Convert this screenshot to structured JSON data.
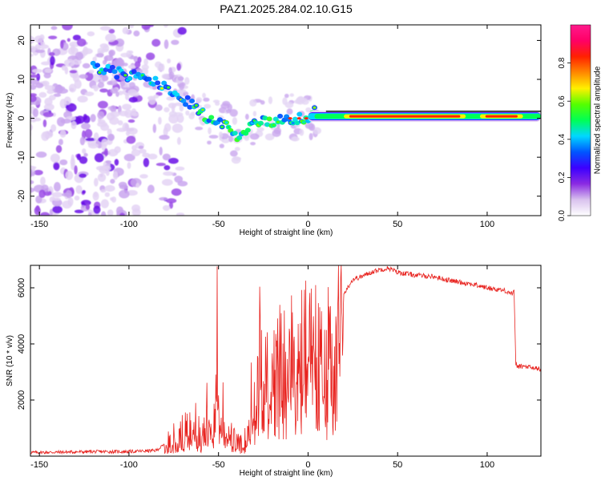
{
  "title": "PAZ1.2025.284.02.10.G15",
  "chart_data": [
    {
      "type": "heatmap",
      "name": "spectrogram",
      "xlabel": "Height of straight line (km)",
      "ylabel": "Frequency (Hz)",
      "xlim": [
        -155,
        130
      ],
      "ylim": [
        -25,
        24
      ],
      "xticks": [
        -150,
        -100,
        -50,
        0,
        50,
        100
      ],
      "xtick_labels": [
        "-150",
        "-100",
        "-50",
        "0",
        "50",
        "100"
      ],
      "yticks": [
        -20,
        -10,
        0,
        10,
        20
      ],
      "ytick_labels": [
        "-20",
        "-10",
        "0",
        "10",
        "20"
      ],
      "ridge": {
        "x": [
          -120,
          -110,
          -100,
          -90,
          -80,
          -70,
          -60,
          -55,
          -50,
          -45,
          -40,
          -35,
          -30,
          -25,
          -20,
          -10,
          -5,
          0,
          3,
          5,
          10,
          20,
          50,
          90,
          95,
          100,
          130
        ],
        "frequency": [
          13,
          12,
          11,
          10,
          8,
          5,
          2,
          -1,
          -1,
          -2,
          -5,
          -4,
          -1,
          -1,
          -1,
          0,
          0,
          0,
          2,
          1,
          1,
          0.5,
          0.5,
          0.5,
          1,
          0.5,
          0.5
        ]
      },
      "colorbar": {
        "label": "Normalized spectral amplitude",
        "range": [
          0,
          1
        ],
        "ticks": [
          0.0,
          0.2,
          0.4,
          0.6,
          0.8
        ],
        "tick_labels": [
          "0.0",
          "0.2",
          "0.4",
          "0.6",
          "0.8"
        ],
        "colors": [
          "#ffffff",
          "#d9c2ee",
          "#8a2be2",
          "#3c00ff",
          "#0055ff",
          "#00d8ff",
          "#00ff55",
          "#55ff00",
          "#fff000",
          "#ff8800",
          "#ff2200",
          "#ff0066",
          "#ff1a8c"
        ]
      }
    },
    {
      "type": "line",
      "name": "snr",
      "xlabel": "Height of straight line (km)",
      "ylabel": "SNR (10 * v/v)",
      "xlim": [
        -155,
        130
      ],
      "ylim": [
        0,
        6800
      ],
      "xticks": [
        -150,
        -100,
        -50,
        0,
        50,
        100
      ],
      "xtick_labels": [
        "-150",
        "-100",
        "-50",
        "0",
        "50",
        "100"
      ],
      "yticks": [
        2000,
        4000,
        6000
      ],
      "ytick_labels": [
        "2000",
        "4000",
        "6000"
      ],
      "color": "#e8231f",
      "x": [
        -155,
        -140,
        -120,
        -100,
        -85,
        -78,
        -72,
        -68,
        -64,
        -60,
        -57,
        -55,
        -53,
        -51,
        -49,
        -47,
        -45,
        -42,
        -39,
        -36,
        -33,
        -31,
        -29,
        -27,
        -25,
        -23,
        -21,
        -18,
        -15,
        -12,
        -9,
        -6,
        -3,
        0,
        3,
        6,
        8,
        10,
        11,
        12,
        14,
        17,
        19,
        22,
        25,
        30,
        35,
        40,
        45,
        50,
        60,
        70,
        80,
        90,
        100,
        110,
        114,
        115,
        116,
        117,
        120,
        125,
        130
      ],
      "y": [
        130,
        140,
        160,
        160,
        200,
        500,
        800,
        900,
        1300,
        700,
        1900,
        2200,
        700,
        4800,
        1200,
        2000,
        900,
        600,
        450,
        400,
        1200,
        3400,
        1500,
        4500,
        2100,
        4900,
        2300,
        3700,
        4200,
        3700,
        4300,
        3600,
        4500,
        4800,
        4200,
        5000,
        4000,
        2800,
        4500,
        5500,
        4700,
        5400,
        5700,
        6000,
        6300,
        6400,
        6550,
        6650,
        6700,
        6550,
        6450,
        6400,
        6250,
        6150,
        6000,
        5900,
        5800,
        5850,
        3300,
        3200,
        3200,
        3150,
        3100
      ]
    }
  ]
}
